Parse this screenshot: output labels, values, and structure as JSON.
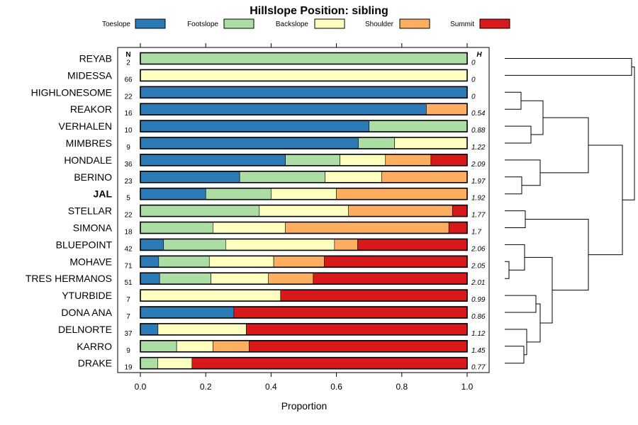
{
  "chart_data": {
    "type": "bar",
    "orientation": "horizontal",
    "stacked": true,
    "title": "Hillslope Position: sibling",
    "xlabel": "Proportion",
    "ylabel": "",
    "xlim": [
      0,
      1
    ],
    "xticks": [
      "0.0",
      "0.2",
      "0.4",
      "0.6",
      "0.8",
      "1.0"
    ],
    "n_header": "N",
    "h_header": "H",
    "legend": [
      {
        "name": "Toeslope",
        "color": "#2C7BB6"
      },
      {
        "name": "Footslope",
        "color": "#ABDDA4"
      },
      {
        "name": "Backslope",
        "color": "#FFFFBF"
      },
      {
        "name": "Shoulder",
        "color": "#FDAE61"
      },
      {
        "name": "Summit",
        "color": "#D7191C"
      }
    ],
    "rows": [
      {
        "label": "REYAB",
        "n": "2",
        "h": "0",
        "values": [
          0,
          1.0,
          0,
          0,
          0
        ],
        "bold": false
      },
      {
        "label": "MIDESSA",
        "n": "66",
        "h": "0",
        "values": [
          0,
          0,
          1.0,
          0,
          0
        ],
        "bold": false
      },
      {
        "label": "HIGHLONESOME",
        "n": "22",
        "h": "0",
        "values": [
          1.0,
          0,
          0,
          0,
          0
        ],
        "bold": false
      },
      {
        "label": "REAKOR",
        "n": "16",
        "h": "0.54",
        "values": [
          0.875,
          0,
          0,
          0.125,
          0
        ],
        "bold": false
      },
      {
        "label": "VERHALEN",
        "n": "10",
        "h": "0.88",
        "values": [
          0.7,
          0.3,
          0,
          0,
          0
        ],
        "bold": false
      },
      {
        "label": "MIMBRES",
        "n": "9",
        "h": "1.22",
        "values": [
          0.667,
          0.111,
          0.222,
          0,
          0
        ],
        "bold": false
      },
      {
        "label": "HONDALE",
        "n": "36",
        "h": "2.09",
        "values": [
          0.444,
          0.167,
          0.139,
          0.139,
          0.111
        ],
        "bold": false
      },
      {
        "label": "BERINO",
        "n": "23",
        "h": "1.97",
        "values": [
          0.304,
          0.261,
          0.174,
          0.261,
          0
        ],
        "bold": false
      },
      {
        "label": "JAL",
        "n": "5",
        "h": "1.92",
        "values": [
          0.2,
          0.2,
          0.2,
          0.4,
          0
        ],
        "bold": true
      },
      {
        "label": "STELLAR",
        "n": "22",
        "h": "1.77",
        "values": [
          0,
          0.364,
          0.273,
          0.318,
          0.045
        ],
        "bold": false
      },
      {
        "label": "SIMONA",
        "n": "18",
        "h": "1.7",
        "values": [
          0,
          0.222,
          0.222,
          0.5,
          0.056
        ],
        "bold": false
      },
      {
        "label": "BLUEPOINT",
        "n": "42",
        "h": "2.06",
        "values": [
          0.071,
          0.19,
          0.333,
          0.071,
          0.335
        ],
        "bold": false
      },
      {
        "label": "MOHAVE",
        "n": "71",
        "h": "2.05",
        "values": [
          0.056,
          0.155,
          0.197,
          0.155,
          0.437
        ],
        "bold": false
      },
      {
        "label": "TRES HERMANOS",
        "n": "51",
        "h": "2.01",
        "values": [
          0.059,
          0.157,
          0.176,
          0.137,
          0.471
        ],
        "bold": false
      },
      {
        "label": "YTURBIDE",
        "n": "7",
        "h": "0.99",
        "values": [
          0,
          0,
          0.429,
          0,
          0.571
        ],
        "bold": false
      },
      {
        "label": "DONA ANA",
        "n": "7",
        "h": "0.86",
        "values": [
          0.286,
          0,
          0,
          0,
          0.714
        ],
        "bold": false
      },
      {
        "label": "DELNORTE",
        "n": "37",
        "h": "1.12",
        "values": [
          0.054,
          0,
          0.27,
          0,
          0.676
        ],
        "bold": false
      },
      {
        "label": "KARRO",
        "n": "9",
        "h": "1.45",
        "values": [
          0,
          0.111,
          0.111,
          0.111,
          0.667
        ],
        "bold": false
      },
      {
        "label": "DRAKE",
        "n": "19",
        "h": "0.77",
        "values": [
          0,
          0.053,
          0.105,
          0,
          0.842
        ],
        "bold": false
      }
    ]
  }
}
